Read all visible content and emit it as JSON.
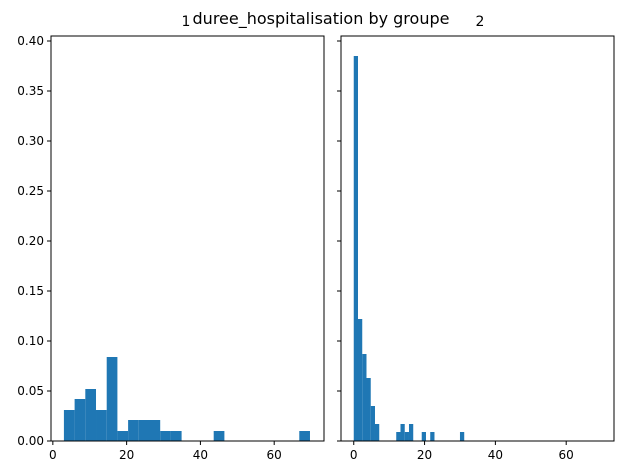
{
  "chart_data": {
    "type": "bar",
    "title": "duree_hospitalisation by groupe",
    "bar_color": "#1f77b4",
    "sharey": true,
    "ylim": [
      0,
      0.405
    ],
    "yticks": [
      0.0,
      0.05,
      0.1,
      0.15,
      0.2,
      0.25,
      0.3,
      0.35,
      0.4
    ],
    "ytick_labels": [
      "0.00",
      "0.05",
      "0.10",
      "0.15",
      "0.20",
      "0.25",
      "0.30",
      "0.35",
      "0.40"
    ],
    "grid": false,
    "panels": [
      {
        "title": "1",
        "xlim": [
          -0.5,
          73.5
        ],
        "xticks": [
          0,
          20,
          40,
          60
        ],
        "xtick_labels": [
          "0",
          "20",
          "40",
          "60"
        ],
        "bin_edges": [
          3.0,
          5.9,
          8.8,
          11.7,
          14.6,
          17.5,
          20.4,
          23.3,
          26.2,
          29.1,
          32.0,
          34.9,
          37.8,
          40.7,
          43.6,
          46.5,
          49.4,
          52.3,
          55.2,
          58.1,
          61.0,
          63.9,
          66.8,
          69.7,
          72.6
        ],
        "values": [
          0.031,
          0.042,
          0.052,
          0.031,
          0.084,
          0.01,
          0.021,
          0.021,
          0.021,
          0.01,
          0.01,
          0.0,
          0.0,
          0.0,
          0.01,
          0.0,
          0.0,
          0.0,
          0.0,
          0.0,
          0.0,
          0.0,
          0.01,
          0.0
        ]
      },
      {
        "title": "2",
        "xlim": [
          -3.6,
          73.5
        ],
        "xticks": [
          0,
          20,
          40,
          60
        ],
        "xtick_labels": [
          "0",
          "20",
          "40",
          "60"
        ],
        "bin_edges": [
          0.0,
          1.2,
          2.4,
          3.6,
          4.8,
          6.0,
          7.2,
          8.4,
          9.6,
          10.8,
          12.0,
          13.2,
          14.4,
          15.6,
          16.8,
          18.0,
          19.2,
          20.4,
          21.6,
          22.8,
          24.0,
          25.2,
          26.4,
          27.6,
          28.8,
          30.0,
          31.2
        ],
        "values": [
          0.385,
          0.122,
          0.087,
          0.063,
          0.035,
          0.017,
          0.0,
          0.0,
          0.0,
          0.0,
          0.009,
          0.017,
          0.009,
          0.017,
          0.0,
          0.0,
          0.009,
          0.0,
          0.009,
          0.0,
          0.0,
          0.0,
          0.0,
          0.0,
          0.0,
          0.009
        ]
      }
    ]
  }
}
